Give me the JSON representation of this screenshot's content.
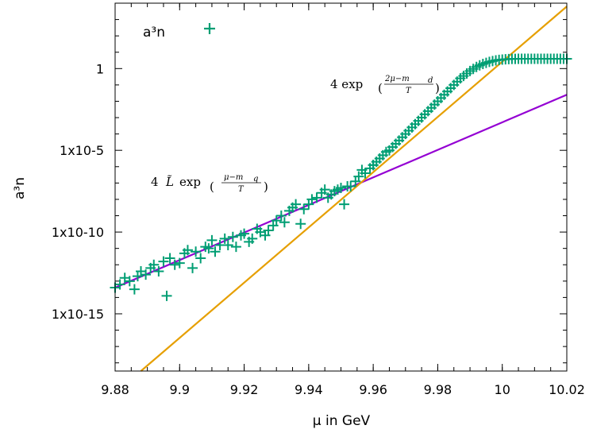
{
  "chart_data": {
    "type": "scatter",
    "xlabel": "μ in GeV",
    "ylabel": "a³n",
    "xlim": [
      9.88,
      10.02
    ],
    "ylim_log10": [
      -18.5,
      4
    ],
    "y_scale": "log",
    "x_ticks": [
      "9.88",
      "9.9",
      "9.92",
      "9.94",
      "9.96",
      "9.98",
      "10",
      "10.02"
    ],
    "x_tick_values": [
      9.88,
      9.9,
      9.92,
      9.94,
      9.96,
      9.98,
      10.0,
      10.02
    ],
    "y_ticks": [
      "1",
      "1x10-5",
      "1x10-10",
      "1x10-15"
    ],
    "y_tick_values": [
      0,
      -5,
      -10,
      -15
    ],
    "legend": {
      "label": "a³n",
      "placement": "top-left"
    },
    "colors": {
      "points": "#009e73",
      "line_quark": "#9400d3",
      "line_diquark": "#e69f00"
    },
    "lines": [
      {
        "name": "quark",
        "x": [
          9.88,
          10.02
        ],
        "log10_y": [
          -13.4,
          -1.6
        ]
      },
      {
        "name": "diquark",
        "x": [
          9.888,
          10.02
        ],
        "log10_y": [
          -18.5,
          3.8
        ]
      }
    ],
    "annotations": {
      "diquark": {
        "prefix": "4 exp",
        "num": "2μ−m",
        "sub": "d",
        "den": "T"
      },
      "quark": {
        "prefix": "4",
        "L": "L̃",
        "exp": "exp",
        "num": "μ−m",
        "sub": "q",
        "den": "T"
      }
    },
    "points_scatter": [
      [
        9.88,
        -13.4
      ],
      [
        9.8815,
        -13.2
      ],
      [
        9.883,
        -12.8
      ],
      [
        9.8845,
        -13.0
      ],
      [
        9.886,
        -13.5
      ],
      [
        9.887,
        -12.7
      ],
      [
        9.888,
        -12.4
      ],
      [
        9.8895,
        -12.6
      ],
      [
        9.891,
        -12.2
      ],
      [
        9.892,
        -12.0
      ],
      [
        9.8935,
        -12.4
      ],
      [
        9.895,
        -11.8
      ],
      [
        9.896,
        -13.9
      ],
      [
        9.897,
        -11.6
      ],
      [
        9.8985,
        -12.0
      ],
      [
        9.9,
        -11.9
      ],
      [
        9.9015,
        -11.3
      ],
      [
        9.9025,
        -11.1
      ],
      [
        9.904,
        -12.2
      ],
      [
        9.905,
        -11.2
      ],
      [
        9.9065,
        -11.6
      ],
      [
        9.908,
        -10.9
      ],
      [
        9.909,
        -11.0
      ],
      [
        9.91,
        -10.5
      ],
      [
        9.911,
        -11.2
      ],
      [
        9.9125,
        -10.8
      ],
      [
        9.914,
        -10.4
      ],
      [
        9.915,
        -10.8
      ],
      [
        9.9165,
        -10.3
      ],
      [
        9.9175,
        -10.9
      ],
      [
        9.919,
        -10.2
      ],
      [
        9.92,
        -10.1
      ],
      [
        9.9215,
        -10.6
      ],
      [
        9.9225,
        -10.4
      ],
      [
        9.924,
        -9.8
      ],
      [
        9.925,
        -10.0
      ],
      [
        9.9265,
        -10.2
      ],
      [
        9.9275,
        -9.9
      ],
      [
        9.929,
        -9.6
      ],
      [
        9.93,
        -9.3
      ],
      [
        9.9315,
        -9.0
      ],
      [
        9.9325,
        -9.4
      ],
      [
        9.934,
        -8.7
      ],
      [
        9.935,
        -8.5
      ],
      [
        9.936,
        -8.3
      ],
      [
        9.9375,
        -9.5
      ],
      [
        9.9385,
        -8.6
      ],
      [
        9.94,
        -8.3
      ],
      [
        9.941,
        -8.0
      ],
      [
        9.9425,
        -7.9
      ],
      [
        9.944,
        -7.6
      ],
      [
        9.945,
        -7.4
      ],
      [
        9.946,
        -7.9
      ],
      [
        9.947,
        -7.7
      ],
      [
        9.948,
        -7.5
      ],
      [
        9.949,
        -7.4
      ],
      [
        9.95,
        -7.3
      ],
      [
        9.951,
        -8.3
      ],
      [
        9.952,
        -7.2
      ],
      [
        9.953,
        -7.2
      ],
      [
        9.9545,
        -6.9
      ],
      [
        9.9555,
        -6.6
      ],
      [
        9.9565,
        -6.2
      ],
      [
        9.9575,
        -6.4
      ],
      [
        9.959,
        -6.1
      ],
      [
        9.96,
        -5.9
      ]
    ],
    "points_curve": {
      "x_start": 9.96,
      "x_end": 10.02,
      "step": 0.001,
      "log10_y": [
        -5.9,
        -5.7,
        -5.5,
        -5.3,
        -5.1,
        -5.0,
        -4.8,
        -4.6,
        -4.4,
        -4.2,
        -4.0,
        -3.8,
        -3.6,
        -3.4,
        -3.2,
        -3.0,
        -2.8,
        -2.6,
        -2.4,
        -2.2,
        -2.0,
        -1.8,
        -1.6,
        -1.4,
        -1.2,
        -1.0,
        -0.8,
        -0.6,
        -0.45,
        -0.3,
        -0.15,
        -0.02,
        0.1,
        0.2,
        0.28,
        0.35,
        0.41,
        0.46,
        0.5,
        0.53,
        0.55,
        0.57,
        0.58,
        0.59,
        0.595,
        0.6,
        0.6,
        0.6,
        0.6,
        0.6,
        0.6,
        0.6,
        0.6,
        0.6,
        0.6,
        0.6,
        0.6,
        0.6,
        0.6,
        0.6,
        0.6
      ]
    }
  }
}
